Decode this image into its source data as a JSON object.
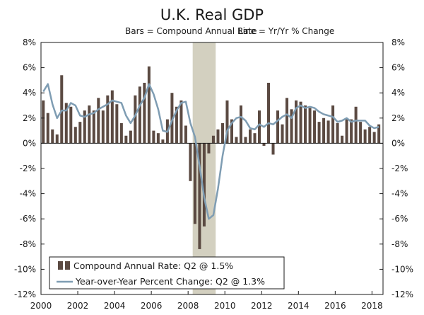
{
  "chart_data": {
    "type": "bar",
    "title": "U.K. Real GDP",
    "subtitle_bars": "Bars = Compound Annual Rate",
    "subtitle_line": "Line = Yr/Yr % Change",
    "xlabel": "",
    "ylabel": "",
    "ylim": [
      -12,
      8
    ],
    "yticks": [
      8,
      6,
      4,
      2,
      0,
      -2,
      -4,
      -6,
      -8,
      -10,
      -12
    ],
    "ytick_labels": [
      "8%",
      "6%",
      "4%",
      "2%",
      "0%",
      "-2%",
      "-4%",
      "-6%",
      "-8%",
      "-10%",
      "-12%"
    ],
    "xlim": [
      2000,
      2018.6
    ],
    "xticks": [
      2000,
      2002,
      2004,
      2006,
      2008,
      2010,
      2012,
      2014,
      2016,
      2018
    ],
    "xtick_labels": [
      "2000",
      "2002",
      "2004",
      "2006",
      "2008",
      "2010",
      "2012",
      "2014",
      "2016",
      "2018"
    ],
    "recession": {
      "start": 2008.25,
      "end": 2009.5
    },
    "grid": false,
    "legend_position": "bottom-left",
    "series": [
      {
        "name": "Compound Annual Rate: Q2 @ 1.5%",
        "kind": "bar",
        "color": "#5b4a42",
        "x": [
          2000.125,
          2000.375,
          2000.625,
          2000.875,
          2001.125,
          2001.375,
          2001.625,
          2001.875,
          2002.125,
          2002.375,
          2002.625,
          2002.875,
          2003.125,
          2003.375,
          2003.625,
          2003.875,
          2004.125,
          2004.375,
          2004.625,
          2004.875,
          2005.125,
          2005.375,
          2005.625,
          2005.875,
          2006.125,
          2006.375,
          2006.625,
          2006.875,
          2007.125,
          2007.375,
          2007.625,
          2007.875,
          2008.125,
          2008.375,
          2008.625,
          2008.875,
          2009.125,
          2009.375,
          2009.625,
          2009.875,
          2010.125,
          2010.375,
          2010.625,
          2010.875,
          2011.125,
          2011.375,
          2011.625,
          2011.875,
          2012.125,
          2012.375,
          2012.625,
          2012.875,
          2013.125,
          2013.375,
          2013.625,
          2013.875,
          2014.125,
          2014.375,
          2014.625,
          2014.875,
          2015.125,
          2015.375,
          2015.625,
          2015.875,
          2016.125,
          2016.375,
          2016.625,
          2016.875,
          2017.125,
          2017.375,
          2017.625,
          2017.875,
          2018.125,
          2018.375
        ],
        "values": [
          3.4,
          2.4,
          1.1,
          0.7,
          5.4,
          3.2,
          2.9,
          1.3,
          1.7,
          2.6,
          3.0,
          2.6,
          3.6,
          2.6,
          3.8,
          4.2,
          3.1,
          1.6,
          0.6,
          1.0,
          3.8,
          4.5,
          4.8,
          6.1,
          1.0,
          0.8,
          0.3,
          1.9,
          4.0,
          2.9,
          3.4,
          1.4,
          -3.0,
          -6.4,
          -8.4,
          -6.6,
          -0.8,
          0.6,
          1.1,
          1.6,
          3.4,
          1.9,
          0.5,
          3.0,
          0.5,
          1.1,
          0.8,
          2.6,
          -0.2,
          4.8,
          -0.9,
          2.6,
          1.5,
          3.6,
          2.7,
          3.4,
          3.3,
          3.0,
          2.8,
          2.6,
          1.7,
          2.0,
          1.8,
          3.0,
          1.6,
          0.6,
          1.9,
          1.9,
          2.9,
          1.7,
          1.1,
          1.3,
          0.9,
          1.5
        ]
      },
      {
        "name": "Year-over-Year Percent Change: Q2 @ 1.3%",
        "kind": "line",
        "color": "#7f9db3",
        "x": [
          2000.125,
          2000.375,
          2000.625,
          2000.875,
          2001.125,
          2001.375,
          2001.625,
          2001.875,
          2002.125,
          2002.375,
          2002.625,
          2002.875,
          2003.125,
          2003.375,
          2003.625,
          2003.875,
          2004.125,
          2004.375,
          2004.625,
          2004.875,
          2005.125,
          2005.375,
          2005.625,
          2005.875,
          2006.125,
          2006.375,
          2006.625,
          2006.875,
          2007.125,
          2007.375,
          2007.625,
          2007.875,
          2008.125,
          2008.375,
          2008.625,
          2008.875,
          2009.125,
          2009.375,
          2009.625,
          2009.875,
          2010.125,
          2010.375,
          2010.625,
          2010.875,
          2011.125,
          2011.375,
          2011.625,
          2011.875,
          2012.125,
          2012.375,
          2012.625,
          2012.875,
          2013.125,
          2013.375,
          2013.625,
          2013.875,
          2014.125,
          2014.375,
          2014.625,
          2014.875,
          2015.125,
          2015.375,
          2015.625,
          2015.875,
          2016.125,
          2016.375,
          2016.625,
          2016.875,
          2017.125,
          2017.375,
          2017.625,
          2017.875,
          2018.125,
          2018.375
        ],
        "values": [
          4.1,
          4.7,
          3.1,
          2.0,
          2.6,
          2.6,
          3.2,
          3.0,
          2.2,
          2.1,
          2.3,
          2.4,
          2.7,
          2.9,
          3.1,
          3.4,
          3.3,
          3.2,
          2.2,
          1.6,
          2.2,
          3.0,
          3.6,
          4.7,
          3.9,
          2.7,
          1.0,
          0.9,
          1.8,
          2.6,
          3.2,
          3.3,
          1.6,
          0.5,
          -1.8,
          -4.3,
          -6.0,
          -5.7,
          -3.6,
          -1.0,
          1.0,
          1.6,
          2.0,
          2.1,
          1.8,
          1.2,
          1.1,
          1.5,
          1.3,
          1.6,
          1.5,
          1.8,
          2.1,
          2.3,
          2.0,
          2.8,
          3.0,
          2.8,
          2.9,
          2.8,
          2.5,
          2.3,
          2.2,
          2.1,
          1.7,
          1.8,
          2.0,
          1.7,
          1.8,
          1.8,
          1.8,
          1.4,
          1.2,
          1.3
        ]
      }
    ]
  }
}
